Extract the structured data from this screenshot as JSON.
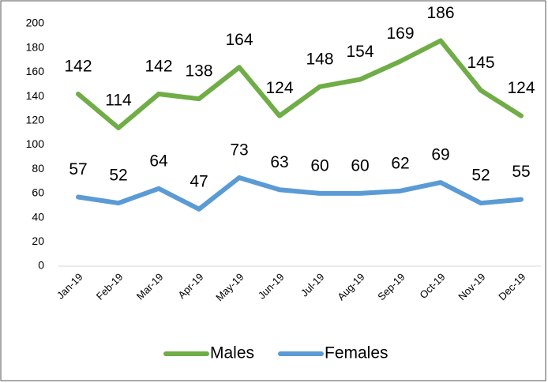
{
  "chart_data": {
    "type": "line",
    "categories": [
      "Jan-19",
      "Feb-19",
      "Mar-19",
      "Apr-19",
      "May-19",
      "Jun-19",
      "Jul-19",
      "Aug-19",
      "Sep-19",
      "Oct-19",
      "Nov-19",
      "Dec-19"
    ],
    "series": [
      {
        "name": "Males",
        "color": "#70ad47",
        "values": [
          142,
          114,
          142,
          138,
          164,
          124,
          148,
          154,
          169,
          186,
          145,
          124
        ]
      },
      {
        "name": "Females",
        "color": "#5b9bd5",
        "values": [
          57,
          52,
          64,
          47,
          73,
          63,
          60,
          60,
          62,
          69,
          52,
          55
        ]
      }
    ],
    "ylim": [
      0,
      200
    ],
    "yticks": [
      0,
      20,
      40,
      60,
      80,
      100,
      120,
      140,
      160,
      180,
      200
    ],
    "grid": false,
    "legend": "bottom",
    "data_labels": true
  }
}
